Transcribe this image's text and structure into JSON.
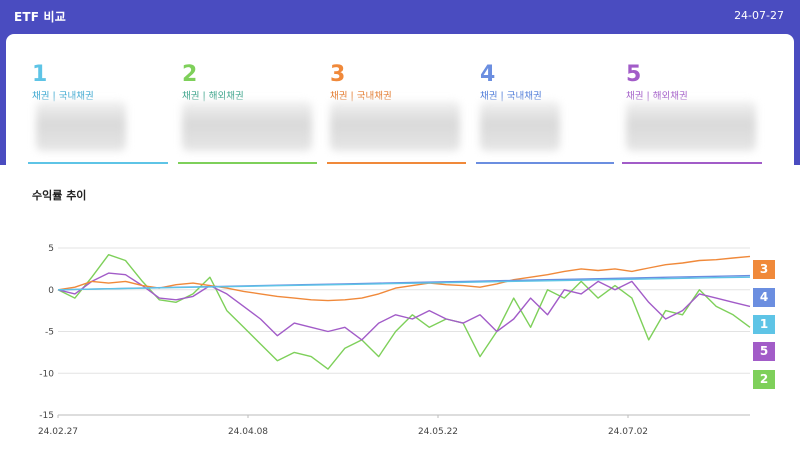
{
  "header": {
    "title": "ETF 비교",
    "date": "24-07-27"
  },
  "etfs": [
    {
      "num": "1",
      "category": "채권 | 국내채권",
      "color": "#5ec4e6"
    },
    {
      "num": "2",
      "category": "채권 | 해외채권",
      "color": "#7ed05a"
    },
    {
      "num": "3",
      "category": "채권 | 국내채권",
      "color": "#f0893a"
    },
    {
      "num": "4",
      "category": "채권 | 국내채권",
      "color": "#6b8ee0"
    },
    {
      "num": "5",
      "category": "채권 | 해외채권",
      "color": "#a25cc8"
    }
  ],
  "section_title": "수익률 추이",
  "chart_data": {
    "type": "line",
    "x_labels": [
      "24.02.27",
      "24.04.08",
      "24.05.22",
      "24.07.02"
    ],
    "y_ticks": [
      5,
      0,
      -5,
      -10,
      -15
    ],
    "ylim": [
      -15,
      5
    ],
    "series": [
      {
        "name": "1",
        "color": "#5ec4e6",
        "values": [
          0,
          0.08,
          0.16,
          0.24,
          0.32,
          0.4,
          0.48,
          0.56,
          0.64,
          0.72,
          0.8,
          0.88,
          0.96,
          1.04,
          1.12,
          1.2,
          1.28,
          1.36,
          1.44,
          1.5
        ]
      },
      {
        "name": "2",
        "color": "#7ed05a",
        "values": [
          0,
          -1,
          1.5,
          4.2,
          3.5,
          1,
          -1.2,
          -1.5,
          -0.5,
          1.5,
          -2.5,
          -4.5,
          -6.5,
          -8.5,
          -7.5,
          -8,
          -9.5,
          -7,
          -6,
          -8,
          -5,
          -3,
          -4.5,
          -3.5,
          -4,
          -8,
          -5,
          -1,
          -4.5,
          0,
          -1,
          1,
          -1,
          0.5,
          -1,
          -6,
          -2.5,
          -3,
          0,
          -2,
          -3,
          -4.5
        ]
      },
      {
        "name": "3",
        "color": "#f0893a",
        "values": [
          0,
          0.3,
          1,
          0.8,
          1,
          0.5,
          0.2,
          0.6,
          0.8,
          0.5,
          0.2,
          -0.2,
          -0.5,
          -0.8,
          -1,
          -1.2,
          -1.3,
          -1.2,
          -1,
          -0.5,
          0.2,
          0.5,
          0.8,
          0.6,
          0.5,
          0.3,
          0.7,
          1.2,
          1.5,
          1.8,
          2.2,
          2.5,
          2.3,
          2.5,
          2.2,
          2.6,
          3,
          3.2,
          3.5,
          3.6,
          3.8,
          4
        ]
      },
      {
        "name": "4",
        "color": "#6b8ee0",
        "values": [
          0,
          0.1,
          0.2,
          0.3,
          0.4,
          0.5,
          0.6,
          0.7,
          0.8,
          0.9,
          1,
          1.1,
          1.2,
          1.3,
          1.4,
          1.5,
          1.6,
          1.7
        ]
      },
      {
        "name": "5",
        "color": "#a25cc8",
        "values": [
          0,
          -0.5,
          1,
          2,
          1.8,
          0.5,
          -1,
          -1.2,
          -0.8,
          0.5,
          -0.5,
          -2,
          -3.5,
          -5.5,
          -4,
          -4.5,
          -5,
          -4.5,
          -6,
          -4,
          -3,
          -3.5,
          -2.5,
          -3.5,
          -4,
          -3,
          -5,
          -3.5,
          -1,
          -3,
          0,
          -0.5,
          1,
          0,
          1,
          -1.5,
          -3.5,
          -2.5,
          -0.5,
          -1,
          -1.5,
          -2
        ]
      }
    ]
  }
}
